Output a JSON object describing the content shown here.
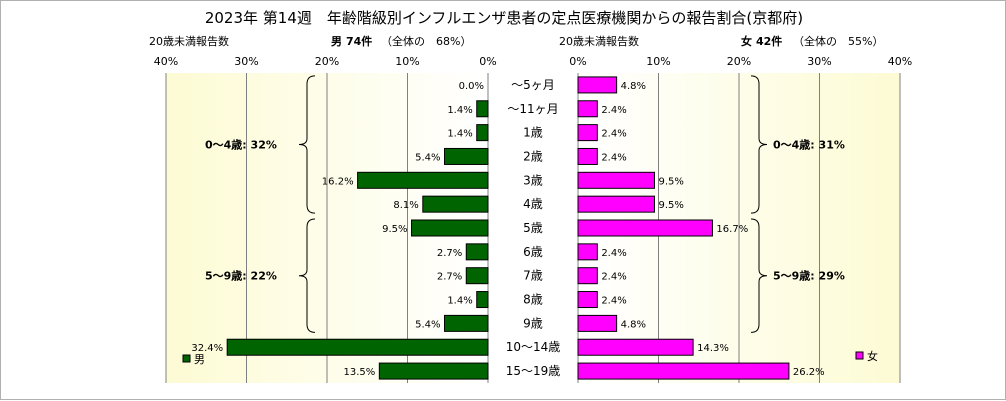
{
  "chart_data": {
    "type": "bar",
    "title": "2023年 第14週　年齢階級別インフルエンザ患者の定点医療機関からの報告割合(京都府)",
    "left_axis_label": "20歳未満報告数",
    "right_axis_label": "20歳未満報告数",
    "left_header": {
      "sex": "男",
      "count": "74件",
      "share": "（全体の　68%）"
    },
    "right_header": {
      "sex": "女",
      "count": "42件",
      "share": "（全体の　55%）"
    },
    "x_ticks_left": [
      "40%",
      "30%",
      "20%",
      "10%",
      "0%"
    ],
    "x_ticks_right": [
      "0%",
      "10%",
      "20%",
      "30%",
      "40%"
    ],
    "xlim": [
      0,
      40
    ],
    "categories": [
      "～5ヶ月",
      "～11ヶ月",
      "1歳",
      "2歳",
      "3歳",
      "4歳",
      "5歳",
      "6歳",
      "7歳",
      "8歳",
      "9歳",
      "10～14歳",
      "15～19歳"
    ],
    "series": [
      {
        "name": "男",
        "color": "#006400",
        "values": [
          0.0,
          1.4,
          1.4,
          5.4,
          16.2,
          8.1,
          9.5,
          2.7,
          2.7,
          1.4,
          5.4,
          32.4,
          13.5
        ],
        "labels": [
          "0.0%",
          "1.4%",
          "1.4%",
          "5.4%",
          "16.2%",
          "8.1%",
          "9.5%",
          "2.7%",
          "2.7%",
          "1.4%",
          "5.4%",
          "32.4%",
          "13.5%"
        ]
      },
      {
        "name": "女",
        "color": "#ff00ff",
        "values": [
          4.8,
          2.4,
          2.4,
          2.4,
          9.5,
          9.5,
          16.7,
          2.4,
          2.4,
          2.4,
          4.8,
          14.3,
          26.2
        ],
        "labels": [
          "4.8%",
          "2.4%",
          "2.4%",
          "2.4%",
          "9.5%",
          "9.5%",
          "16.7%",
          "2.4%",
          "2.4%",
          "2.4%",
          "4.8%",
          "14.3%",
          "26.2%"
        ]
      }
    ],
    "group_annotations": {
      "left": [
        {
          "text": "0～4歳: 32%",
          "from_category": 0,
          "to_category": 5
        },
        {
          "text": "5～9歳: 22%",
          "from_category": 6,
          "to_category": 10
        }
      ],
      "right": [
        {
          "text": "0～4歳: 31%",
          "from_category": 0,
          "to_category": 5
        },
        {
          "text": "5～9歳: 29%",
          "from_category": 6,
          "to_category": 10
        }
      ]
    },
    "legend": {
      "left": "男",
      "right": "女",
      "placement": "bottom-left and bottom-right of each panel"
    },
    "panel_background": "light yellow to white gradient",
    "grid": true
  }
}
